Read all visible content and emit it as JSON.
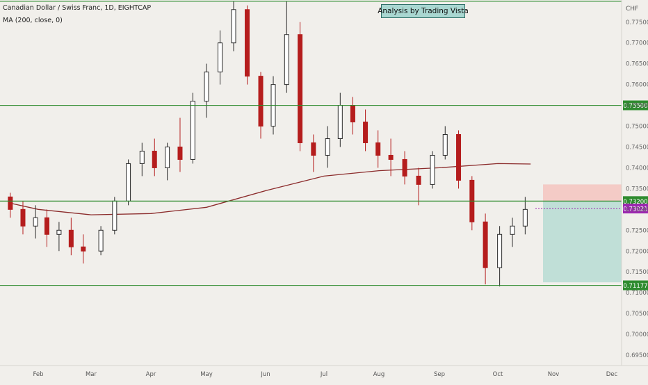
{
  "header": {
    "symbol_title": "Canadian Dollar / Swiss Franc, 1D, EIGHTCAP",
    "indicator_legend": "MA (200, close, 0)",
    "watermark": "Analysis by Trading Vista",
    "currency": "CHF"
  },
  "chart_data": {
    "type": "candlestick",
    "title": "Canadian Dollar / Swiss Franc, 1D, EIGHTCAP",
    "ylabel": "CHF",
    "ylim": [
      0.6925,
      0.7803
    ],
    "x_ticks": [
      "Feb",
      "Mar",
      "Apr",
      "May",
      "Jun",
      "Jul",
      "Aug",
      "Sep",
      "Oct",
      "Nov",
      "Dec"
    ],
    "y_ticks": [
      "0.77500",
      "0.77000",
      "0.76500",
      "0.76000",
      "0.75500",
      "0.75000",
      "0.74500",
      "0.74000",
      "0.73500",
      "0.73000",
      "0.72500",
      "0.72000",
      "0.71500",
      "0.71000",
      "0.70500",
      "0.70000",
      "0.69500"
    ],
    "horizontal_levels": [
      {
        "label": "",
        "value": 0.78
      },
      {
        "label": "0.75500",
        "value": 0.755
      },
      {
        "label": "0.73200",
        "value": 0.732
      },
      {
        "label": "0.71177",
        "value": 0.71177
      }
    ],
    "last_price": {
      "label": "0.73021",
      "value": 0.73021
    },
    "moving_average": {
      "name": "MA (200, close, 0)",
      "points": [
        [
          "Jan 16",
          0.7315
        ],
        [
          "Feb 1",
          0.73
        ],
        [
          "Mar 1",
          0.7287
        ],
        [
          "Apr 1",
          0.729
        ],
        [
          "May 1",
          0.7305
        ],
        [
          "Jun 1",
          0.7345
        ],
        [
          "Jul 1",
          0.738
        ],
        [
          "Aug 1",
          0.7393
        ],
        [
          "Sep 1",
          0.74
        ],
        [
          "Oct 1",
          0.741
        ],
        [
          "Oct 19",
          0.7409
        ]
      ]
    },
    "position_tool": {
      "entry": 0.732,
      "stop": 0.736,
      "target": 0.7125
    },
    "ohlc": [
      [
        "Jan 16",
        0.733,
        0.734,
        0.728,
        0.73
      ],
      [
        "Jan 23",
        0.73,
        0.732,
        0.724,
        0.726
      ],
      [
        "Jan 30",
        0.726,
        0.731,
        0.723,
        0.728
      ],
      [
        "Feb 6",
        0.728,
        0.73,
        0.721,
        0.724
      ],
      [
        "Feb 13",
        0.724,
        0.727,
        0.72,
        0.725
      ],
      [
        "Feb 20",
        0.725,
        0.728,
        0.719,
        0.721
      ],
      [
        "Feb 27",
        0.721,
        0.724,
        0.717,
        0.72
      ],
      [
        "Mar 6",
        0.72,
        0.726,
        0.719,
        0.725
      ],
      [
        "Mar 13",
        0.725,
        0.733,
        0.724,
        0.732
      ],
      [
        "Mar 20",
        0.732,
        0.742,
        0.731,
        0.741
      ],
      [
        "Mar 27",
        0.741,
        0.746,
        0.738,
        0.744
      ],
      [
        "Apr 3",
        0.744,
        0.747,
        0.738,
        0.74
      ],
      [
        "Apr 10",
        0.74,
        0.746,
        0.737,
        0.745
      ],
      [
        "Apr 17",
        0.745,
        0.752,
        0.739,
        0.742
      ],
      [
        "Apr 24",
        0.742,
        0.758,
        0.741,
        0.756
      ],
      [
        "May 1",
        0.756,
        0.765,
        0.752,
        0.763
      ],
      [
        "May 8",
        0.763,
        0.773,
        0.76,
        0.77
      ],
      [
        "May 15",
        0.77,
        0.78,
        0.768,
        0.778
      ],
      [
        "May 22",
        0.778,
        0.779,
        0.76,
        0.762
      ],
      [
        "May 29",
        0.762,
        0.763,
        0.747,
        0.75
      ],
      [
        "Jun 5",
        0.75,
        0.762,
        0.748,
        0.76
      ],
      [
        "Jun 12",
        0.76,
        0.78,
        0.758,
        0.772
      ],
      [
        "Jun 19",
        0.772,
        0.775,
        0.744,
        0.746
      ],
      [
        "Jun 26",
        0.746,
        0.748,
        0.739,
        0.743
      ],
      [
        "Jul 3",
        0.743,
        0.75,
        0.74,
        0.747
      ],
      [
        "Jul 10",
        0.747,
        0.758,
        0.745,
        0.755
      ],
      [
        "Jul 17",
        0.755,
        0.757,
        0.748,
        0.751
      ],
      [
        "Jul 24",
        0.751,
        0.754,
        0.744,
        0.746
      ],
      [
        "Jul 31",
        0.746,
        0.749,
        0.74,
        0.743
      ],
      [
        "Aug 7",
        0.743,
        0.747,
        0.738,
        0.742
      ],
      [
        "Aug 14",
        0.742,
        0.744,
        0.736,
        0.738
      ],
      [
        "Aug 21",
        0.738,
        0.74,
        0.731,
        0.736
      ],
      [
        "Aug 28",
        0.736,
        0.744,
        0.735,
        0.743
      ],
      [
        "Sep 4",
        0.743,
        0.75,
        0.742,
        0.748
      ],
      [
        "Sep 11",
        0.748,
        0.749,
        0.735,
        0.737
      ],
      [
        "Sep 18",
        0.737,
        0.738,
        0.725,
        0.727
      ],
      [
        "Sep 25",
        0.727,
        0.729,
        0.712,
        0.716
      ],
      [
        "Oct 2",
        0.716,
        0.726,
        0.7115,
        0.724
      ],
      [
        "Oct 9",
        0.724,
        0.728,
        0.721,
        0.726
      ],
      [
        "Oct 16",
        0.726,
        0.733,
        0.724,
        0.73
      ]
    ]
  },
  "colors": {
    "background": "#f1efeb",
    "bull_candle": "#2b2b2b",
    "bear_candle": "#b51d1d",
    "level_line": "#2e8b2e",
    "level_label_bg": "#2e8b2e",
    "last_price_bg": "#9c27b0",
    "ma_line": "#8b2b2b",
    "stop_zone": "#f4c4c0",
    "target_zone": "#b7dcd4"
  }
}
